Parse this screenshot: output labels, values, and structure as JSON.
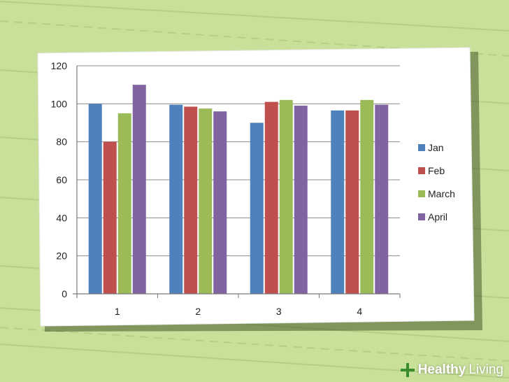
{
  "chart_data": {
    "type": "bar",
    "categories": [
      "1",
      "2",
      "3",
      "4"
    ],
    "series": [
      {
        "name": "Jan",
        "color": "#4f81bd",
        "values": [
          100,
          99.5,
          90,
          96.5
        ]
      },
      {
        "name": "Feb",
        "color": "#c0504d",
        "values": [
          80,
          98.5,
          101,
          96.5
        ]
      },
      {
        "name": "March",
        "color": "#9bbb59",
        "values": [
          95,
          97.5,
          102,
          102
        ]
      },
      {
        "name": "April",
        "color": "#8064a2",
        "values": [
          110,
          96,
          99,
          99.5
        ]
      }
    ],
    "y_ticks": [
      "0",
      "20",
      "40",
      "60",
      "80",
      "100",
      "120"
    ],
    "ylim": [
      0,
      120
    ],
    "grid": true,
    "legend_position": "right"
  },
  "watermark": {
    "icon": "plus-leaf-icon",
    "word1": "Healthy",
    "word2": "Living",
    "icon_color": "#3b8c2a"
  }
}
